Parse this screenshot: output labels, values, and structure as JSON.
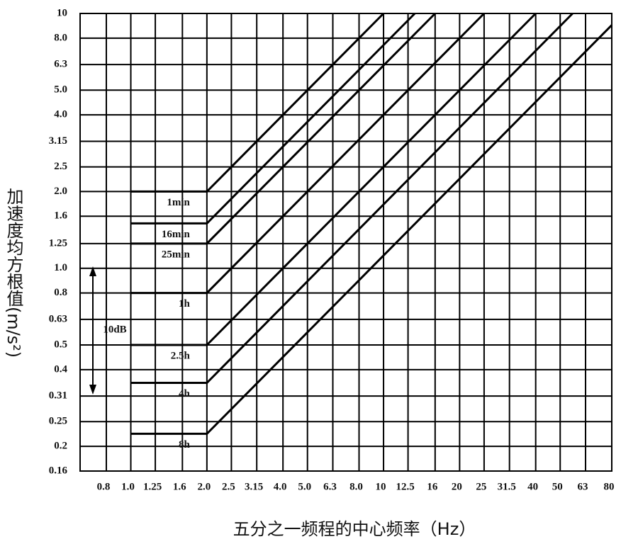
{
  "chart_data": {
    "type": "line",
    "x_label": "五分之一频程的中心频率（Hz）",
    "y_label": "加速度均方根值(m/s²)",
    "annotation": "10dB",
    "xscale": "log",
    "yscale": "log",
    "grid": true,
    "xlim": [
      0.63,
      80
    ],
    "ylim": [
      0.16,
      10
    ],
    "xticks": [
      0.8,
      {
        "value": 1,
        "label": "1.0"
      },
      1.25,
      1.6,
      {
        "value": 2,
        "label": "2.0"
      },
      2.5,
      3.15,
      {
        "value": 4,
        "label": "4.0"
      },
      {
        "value": 5,
        "label": "5.0"
      },
      6.3,
      {
        "value": 8,
        "label": "8.0"
      },
      10,
      12.5,
      16,
      20,
      25,
      31.5,
      40,
      50,
      63,
      80
    ],
    "yticks": [
      0.16,
      0.2,
      0.25,
      {
        "value": 0.315,
        "label": "0.31"
      },
      0.4,
      0.5,
      0.63,
      0.8,
      {
        "value": 1,
        "label": "1.0"
      },
      1.25,
      1.6,
      {
        "value": 2,
        "label": "2.0"
      },
      2.5,
      3.15,
      {
        "value": 4,
        "label": "4.0"
      },
      {
        "value": 5,
        "label": "5.0"
      },
      6.3,
      {
        "value": 8,
        "label": "8.0"
      },
      10
    ],
    "series": [
      {
        "name": "1min",
        "color": "#000000",
        "x": [
          1,
          2,
          10
        ],
        "values": [
          2,
          2,
          10
        ]
      },
      {
        "name": "16min",
        "color": "#000000",
        "x": [
          1,
          2,
          13.3
        ],
        "values": [
          1.5,
          1.5,
          10
        ]
      },
      {
        "name": "25min",
        "color": "#000000",
        "x": [
          1,
          2,
          16
        ],
        "values": [
          1.25,
          1.25,
          10
        ]
      },
      {
        "name": "1h",
        "color": "#000000",
        "x": [
          1,
          2,
          25
        ],
        "values": [
          0.8,
          0.8,
          10
        ]
      },
      {
        "name": "2.5h",
        "color": "#000000",
        "x": [
          1,
          2,
          40
        ],
        "values": [
          0.5,
          0.5,
          10
        ]
      },
      {
        "name": "4h",
        "color": "#000000",
        "x": [
          1,
          2,
          56
        ],
        "values": [
          0.355,
          0.355,
          10
        ]
      },
      {
        "name": "8h",
        "color": "#000000",
        "x": [
          1,
          2,
          80
        ],
        "values": [
          0.224,
          0.224,
          9
        ]
      }
    ]
  }
}
